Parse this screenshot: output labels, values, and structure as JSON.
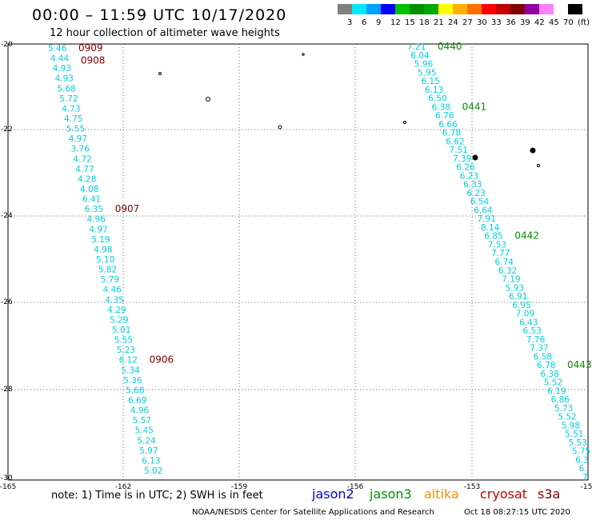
{
  "header": {
    "title": "00:00 – 11:59 UTC 10/17/2020",
    "subtitle": "12 hour collection of altimeter wave heights"
  },
  "legend": {
    "colors": [
      "#808080",
      "#00e8ff",
      "#00a0ff",
      "#0000ff",
      "#00c000",
      "#009000",
      "#00a800",
      "#ffff00",
      "#ffb000",
      "#ff7000",
      "#ff0000",
      "#c00000",
      "#800000",
      "#9000a0",
      "#ff80ff",
      "#ffffff",
      "#000000"
    ],
    "labels": [
      "3",
      "6",
      "9",
      "12",
      "15",
      "18",
      "21",
      "24",
      "27",
      "30",
      "33",
      "36",
      "39",
      "42",
      "45",
      "70",
      "(ft)"
    ]
  },
  "axes": {
    "lon_ticks": [
      "-165",
      "-162",
      "-159",
      "-156",
      "-153",
      "-15"
    ],
    "lat_ticks": [
      "-20",
      "-22",
      "-24",
      "-26",
      "-28",
      "-30"
    ]
  },
  "colors": {
    "jason2": "#0000cc",
    "jason3": "#009000",
    "altika": "#ff8c00",
    "cryosat": "#cc0000",
    "s3a": "#800000",
    "track": "#00d0e0"
  },
  "track_left": {
    "values": [
      "5.46",
      "4.44",
      "4.93",
      "4.93",
      "5.68",
      "5.72",
      "4.73",
      "4.75",
      "5.55",
      "4.97",
      "3.76",
      "4.72",
      "4.77",
      "4.28",
      "4.08",
      "6.41",
      "6.35",
      "4.96",
      "4.97",
      "5.19",
      "4.98",
      "5.10",
      "5.82",
      "5.79",
      "4.46",
      "4.35",
      "4.29",
      "5.29",
      "5.01",
      "5.55",
      "5.23",
      "6.12",
      "5.34",
      "5.36",
      "5.68",
      "6.69",
      "4.96",
      "5.57",
      "5.45",
      "5.24",
      "5.97",
      "6.13",
      "5.02"
    ],
    "times": [
      {
        "t": "0909",
        "idx": 0
      },
      {
        "t": "0908",
        "idx": 1
      },
      {
        "t": "0907",
        "idx": 16
      },
      {
        "t": "0906",
        "idx": 31
      }
    ]
  },
  "track_right": {
    "values": [
      "7.21",
      "6.04",
      "5.96",
      "5.95",
      "6.15",
      "6.13",
      "6.50",
      "6.38",
      "6.76",
      "6.66",
      "6.78",
      "6.62",
      "7.51",
      "7.39",
      "6.26",
      "6.23",
      "6.33",
      "6.23",
      "6.54",
      "6.64",
      "7.91",
      "8.14",
      "6.85",
      "7.53",
      "7.77",
      "6.74",
      "6.32",
      "7.19",
      "5.93",
      "6.91",
      "6.95",
      "7.09",
      "6.43",
      "6.53",
      "7.76",
      "7.37",
      "6.58",
      "6.78",
      "6.38",
      "5.52",
      "6.19",
      "6.86",
      "5.73",
      "5.52",
      "5.98",
      "5.51",
      "5.53",
      "5.75",
      "6.3",
      "6.",
      "7"
    ],
    "times": [
      {
        "t": "0440",
        "idx": 0
      },
      {
        "t": "0441",
        "idx": 7
      },
      {
        "t": "0442",
        "idx": 22
      },
      {
        "t": "0443",
        "idx": 37
      }
    ]
  },
  "footer": {
    "note": "note: 1) Time is in UTC; 2) SWH is in feet",
    "sats": [
      "jason2",
      "jason3",
      "altika",
      "cryosat",
      "s3a"
    ],
    "credit": "NOAA/NESDIS Center for Satellite Applications and Research",
    "timestamp": "Oct 18 08:27:15 UTC 2020"
  }
}
